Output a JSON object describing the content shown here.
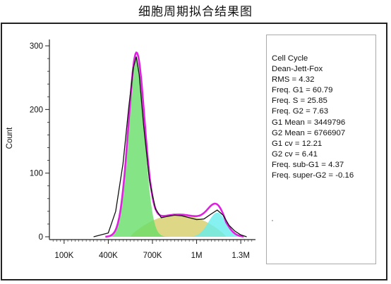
{
  "title": "细胞周期拟合结果图",
  "chart_data": {
    "type": "area",
    "title": "细胞周期拟合结果图",
    "xlabel": "",
    "ylabel": "Count",
    "xlim": [
      0,
      1400000
    ],
    "ylim": [
      0,
      310
    ],
    "x_ticks": [
      {
        "label": "100K",
        "value": 100000
      },
      {
        "label": "400K",
        "value": 400000
      },
      {
        "label": "700K",
        "value": 700000
      },
      {
        "label": "1M",
        "value": 1000000
      },
      {
        "label": "1.3M",
        "value": 1300000
      }
    ],
    "y_ticks": [
      {
        "label": "0",
        "value": 0
      },
      {
        "label": "100",
        "value": 100
      },
      {
        "label": "200",
        "value": 200
      },
      {
        "label": "300",
        "value": 300
      }
    ],
    "colors": {
      "histogram": "#111111",
      "fit": "#e020e0",
      "g1": "#66dd66",
      "s": "#d8d070",
      "g2": "#66eeee"
    },
    "g1_peak": {
      "center": 590000,
      "height": 280,
      "sigma": 55000
    },
    "g2_peak": {
      "center": 1140000,
      "height": 38,
      "sigma": 60000
    },
    "s_phase": {
      "start": 550000,
      "end": 1200000,
      "max": 35
    },
    "histogram": {
      "x": [
        300000,
        400000,
        450000,
        500000,
        540000,
        570000,
        590000,
        610000,
        640000,
        680000,
        720000,
        760000,
        800000,
        850000,
        900000,
        950000,
        1000000,
        1050000,
        1100000,
        1140000,
        1180000,
        1220000,
        1260000,
        1300000,
        1340000
      ],
      "y": [
        0,
        6,
        40,
        115,
        205,
        265,
        283,
        255,
        175,
        88,
        44,
        30,
        32,
        34,
        33,
        30,
        27,
        28,
        36,
        42,
        34,
        18,
        9,
        3,
        0
      ]
    },
    "stats": [
      "Cell Cycle",
      "Dean-Jett-Fox",
      "RMS  = 4.32",
      "Freq. G1  = 60.79",
      "Freq. S = 25.85",
      "Freq. G2  = 7.63",
      "G1 Mean  = 3449796",
      "G2 Mean  = 6766907",
      "G1 cv  = 12.21",
      "G2 cv = 6.41",
      "Freq. sub-G1  = 4.37",
      "Freq. super-G2 = -0.16"
    ]
  }
}
